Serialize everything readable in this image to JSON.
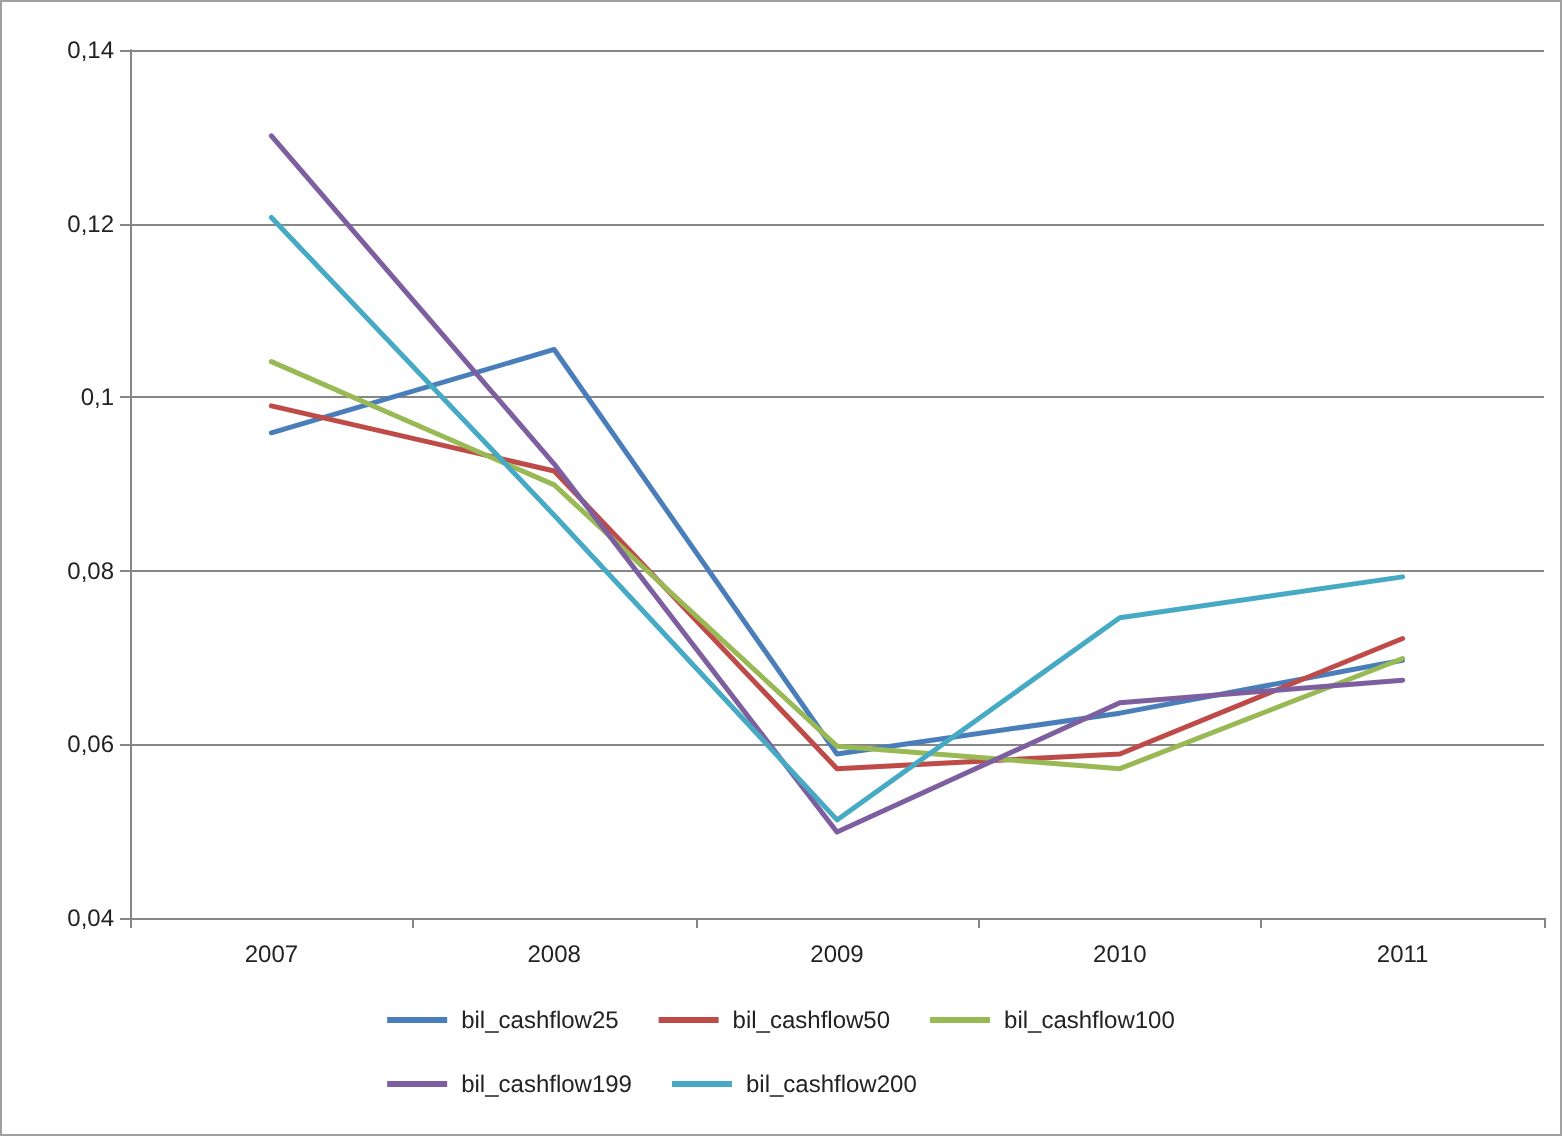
{
  "chart_data": {
    "type": "line",
    "categories": [
      "2007",
      "2008",
      "2009",
      "2010",
      "2011"
    ],
    "series": [
      {
        "name": "bil_cashflow25",
        "color": "#4a7ebb",
        "values": [
          0.0959,
          0.1055,
          0.0589,
          0.0636,
          0.0697
        ]
      },
      {
        "name": "bil_cashflow50",
        "color": "#be4b48",
        "values": [
          0.099,
          0.0915,
          0.0572,
          0.0589,
          0.0722
        ]
      },
      {
        "name": "bil_cashflow100",
        "color": "#98b954",
        "values": [
          0.1041,
          0.0899,
          0.0598,
          0.0572,
          0.0699
        ]
      },
      {
        "name": "bil_cashflow199",
        "color": "#7d5fa0",
        "values": [
          0.1301,
          0.0923,
          0.0499,
          0.0648,
          0.0674
        ]
      },
      {
        "name": "bil_cashflow200",
        "color": "#46aac5",
        "values": [
          0.1207,
          0.0864,
          0.0513,
          0.0746,
          0.0793
        ]
      }
    ],
    "ylim": [
      0.04,
      0.14
    ],
    "yticks": [
      {
        "value": 0.04,
        "label": "0,04"
      },
      {
        "value": 0.06,
        "label": "0,06"
      },
      {
        "value": 0.08,
        "label": "0,08"
      },
      {
        "value": 0.1,
        "label": "0,1"
      },
      {
        "value": 0.12,
        "label": "0,12"
      },
      {
        "value": 0.14,
        "label": "0,14"
      }
    ],
    "grid": "y",
    "legend": "bottom",
    "marker": "none",
    "line_style": "solid"
  }
}
